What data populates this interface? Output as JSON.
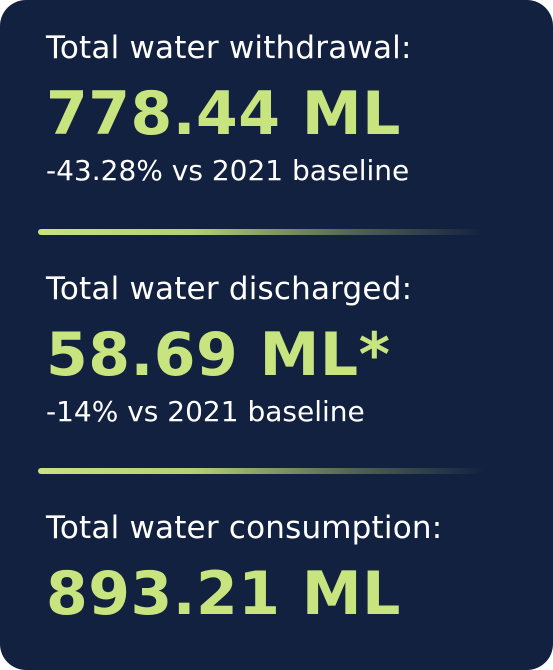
{
  "stats": [
    {
      "label": "Total water withdrawal:",
      "value": "778.44 ML",
      "note": "-43.28% vs 2021 baseline"
    },
    {
      "label": "Total water discharged:",
      "value": "58.69 ML*",
      "note": "-14% vs 2021 baseline"
    },
    {
      "label": "Total water consumption:",
      "value": "893.21 ML"
    }
  ],
  "colors": {
    "background": "#132140",
    "accent": "#c8e47f",
    "text": "#ffffff"
  }
}
